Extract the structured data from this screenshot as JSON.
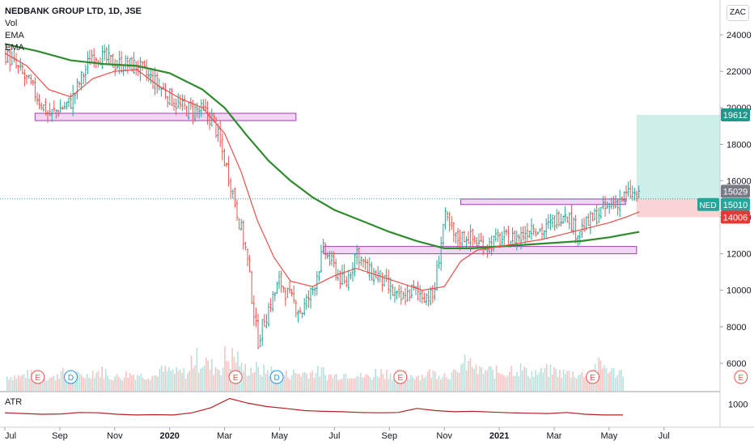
{
  "header": {
    "title": "NEDBANK GROUP LTD, 1D, JSE",
    "studies": [
      "Vol",
      "EMA",
      "EMA"
    ],
    "currency": "ZAC",
    "atr_label": "ATR"
  },
  "colors": {
    "up": "#26a69a",
    "down": "#ef5350",
    "ema_fast": "#e8504a",
    "ema_slow": "#2e8b2e",
    "zone_fill": "#f3d6f5",
    "zone_stroke": "#a43bb3",
    "target_fill": "#cdeee9",
    "stop_fill": "#fad4d4",
    "atr": "#b22222"
  },
  "chart_data": {
    "type": "line",
    "title": "NEDBANK GROUP LTD, 1D, JSE",
    "xlabel": "",
    "ylabel": "",
    "ylim": [
      4800,
      25200
    ],
    "grid": false,
    "x_ticks": [
      "Jul",
      "Sep",
      "Nov",
      "2020",
      "Mar",
      "May",
      "Jul",
      "Sep",
      "Nov",
      "2021",
      "Mar",
      "May",
      "Jul"
    ],
    "y_ticks": [
      6000,
      8000,
      10000,
      12000,
      14000,
      16000,
      18000,
      20000,
      22000,
      24000
    ],
    "price_series": {
      "name": "NED",
      "x": [
        0,
        0.4,
        0.8,
        1.2,
        1.6,
        2.0,
        2.4,
        2.8,
        3.2,
        3.6,
        3.8,
        4.1,
        4.4,
        4.6,
        4.8,
        5.0,
        5.2,
        5.4,
        5.6,
        5.8,
        6.0,
        6.2,
        6.4,
        6.6,
        6.8,
        7.0,
        7.2,
        7.4,
        7.6,
        7.8,
        8.0,
        8.2,
        8.4,
        8.6,
        8.8,
        9.0,
        9.2,
        9.4,
        9.6,
        9.8,
        10.0,
        10.2,
        10.4,
        10.6,
        10.8,
        11.0,
        11.2,
        11.4,
        11.55
      ],
      "y": [
        23000,
        21500,
        19600,
        20300,
        23000,
        22400,
        22300,
        21200,
        20000,
        19800,
        19300,
        16000,
        12000,
        7200,
        9000,
        10500,
        9500,
        8800,
        10000,
        12200,
        11200,
        10200,
        12200,
        11000,
        10800,
        10000,
        9400,
        10000,
        9800,
        9600,
        14000,
        12800,
        13000,
        12600,
        12500,
        12800,
        12800,
        13000,
        13600,
        13200,
        13800,
        14400,
        13200,
        13600,
        14200,
        14600,
        15000,
        15300,
        15010
      ]
    },
    "ema_fast": {
      "name": "EMA",
      "x": [
        0,
        0.4,
        0.8,
        1.2,
        1.6,
        2.0,
        2.4,
        2.8,
        3.2,
        3.6,
        4.0,
        4.3,
        4.6,
        4.9,
        5.2,
        5.6,
        6.0,
        6.4,
        6.8,
        7.2,
        7.6,
        8.0,
        8.3,
        8.6,
        9.0,
        9.4,
        9.8,
        10.2,
        10.6,
        11.0,
        11.3,
        11.55
      ],
      "y": [
        23000,
        22300,
        21000,
        20600,
        21600,
        22000,
        22100,
        21200,
        20500,
        20000,
        18600,
        16500,
        13800,
        11800,
        10500,
        10200,
        10800,
        11200,
        10800,
        10400,
        10000,
        10200,
        11600,
        12200,
        12400,
        12600,
        12800,
        13100,
        13400,
        13700,
        14000,
        14300
      ]
    },
    "ema_slow": {
      "name": "EMA",
      "x": [
        0,
        0.6,
        1.2,
        1.8,
        2.4,
        3.0,
        3.6,
        4.0,
        4.4,
        4.8,
        5.2,
        5.6,
        6.0,
        6.5,
        7.0,
        7.5,
        8.0,
        8.5,
        9.0,
        9.5,
        10.0,
        10.5,
        11.0,
        11.55
      ],
      "y": [
        23500,
        23100,
        22600,
        22400,
        22300,
        21900,
        21000,
        20000,
        18500,
        17100,
        16000,
        15100,
        14400,
        13800,
        13200,
        12700,
        12300,
        12300,
        12400,
        12500,
        12600,
        12700,
        12900,
        13200
      ]
    },
    "volume_relative": [
      0.18,
      0.22,
      0.15,
      0.25,
      0.2,
      0.28,
      0.17,
      0.23,
      0.2,
      0.3,
      0.26,
      0.55,
      0.4,
      0.6,
      0.35,
      0.3,
      0.22,
      0.25,
      0.28,
      0.2,
      0.24,
      0.18,
      0.27,
      0.22,
      0.2,
      0.25,
      0.23,
      0.45,
      0.3,
      0.28,
      0.35,
      0.26,
      0.3,
      0.25,
      0.22,
      0.4,
      0.28,
      0.27
    ],
    "zones": [
      {
        "x0": 0.55,
        "x1": 5.3,
        "y0": 19300,
        "y1": 19700
      },
      {
        "x0": 5.8,
        "x1": 11.5,
        "y0": 12000,
        "y1": 12400
      },
      {
        "x0": 8.3,
        "x1": 11.3,
        "y0": 14700,
        "y1": 15000
      }
    ],
    "position": {
      "entry": 15010,
      "target": 19612,
      "stop": 14006,
      "x0": 11.5
    },
    "price_labels": [
      {
        "value": 19612,
        "text": "19612",
        "kind": "target"
      },
      {
        "value": 15029,
        "text": "15029",
        "kind": "neutral"
      },
      {
        "value": 15010,
        "text": "15010",
        "kind": "last"
      },
      {
        "value": 14006,
        "text": "14006",
        "kind": "stop"
      }
    ],
    "event_markers": [
      {
        "x": 0.6,
        "label": "E"
      },
      {
        "x": 1.2,
        "label": "D"
      },
      {
        "x": 4.2,
        "label": "E"
      },
      {
        "x": 4.95,
        "label": "D"
      },
      {
        "x": 7.2,
        "label": "E"
      },
      {
        "x": 10.7,
        "label": "E"
      },
      {
        "x": 13.4,
        "label": "E"
      }
    ],
    "atr": {
      "name": "ATR",
      "y_tick": 1000,
      "ylim": [
        500,
        1250
      ],
      "values": [
        760,
        740,
        720,
        730,
        770,
        760,
        720,
        700,
        710,
        700,
        760,
        900,
        1150,
        1020,
        930,
        880,
        820,
        800,
        790,
        770,
        760,
        770,
        880,
        820,
        790,
        800,
        780,
        760,
        750,
        740,
        770,
        720,
        700,
        700
      ]
    }
  }
}
